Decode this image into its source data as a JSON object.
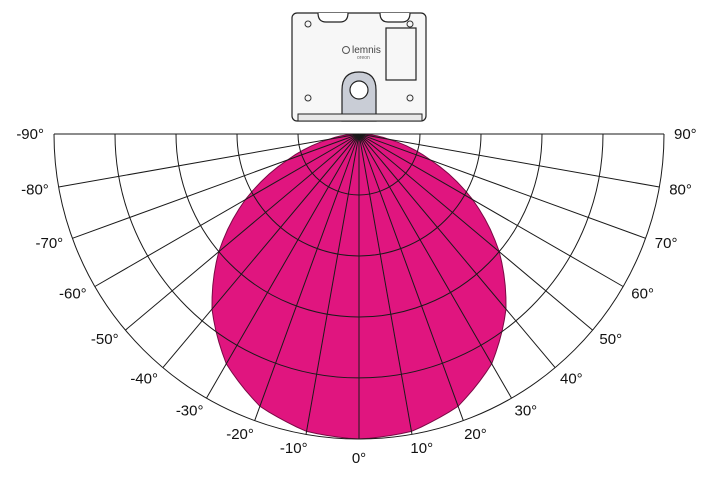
{
  "fixture": {
    "brand": "lemnis",
    "brand_sub": "oreon"
  },
  "chart_data": {
    "type": "polar",
    "angle_labels": [
      "-90°",
      "-80°",
      "-70°",
      "-60°",
      "-50°",
      "-40°",
      "-30°",
      "-20°",
      "-10°",
      "0°",
      "10°",
      "20°",
      "30°",
      "40°",
      "50°",
      "60°",
      "70°",
      "80°",
      "90°"
    ],
    "angles": [
      -90,
      -80,
      -70,
      -60,
      -50,
      -40,
      -30,
      -20,
      -10,
      0,
      10,
      20,
      30,
      40,
      50,
      60,
      70,
      80,
      90
    ],
    "radial_rings": 5,
    "radial_max": 1.0,
    "beam_colors": {
      "fill": "#e0157f",
      "stroke": "#7a0a45"
    },
    "distribution": {
      "angles": [
        0,
        10,
        20,
        30,
        40,
        50,
        60,
        70,
        80,
        90
      ],
      "values": [
        1.0,
        0.99,
        0.95,
        0.87,
        0.75,
        0.6,
        0.43,
        0.25,
        0.1,
        0.0
      ]
    }
  }
}
